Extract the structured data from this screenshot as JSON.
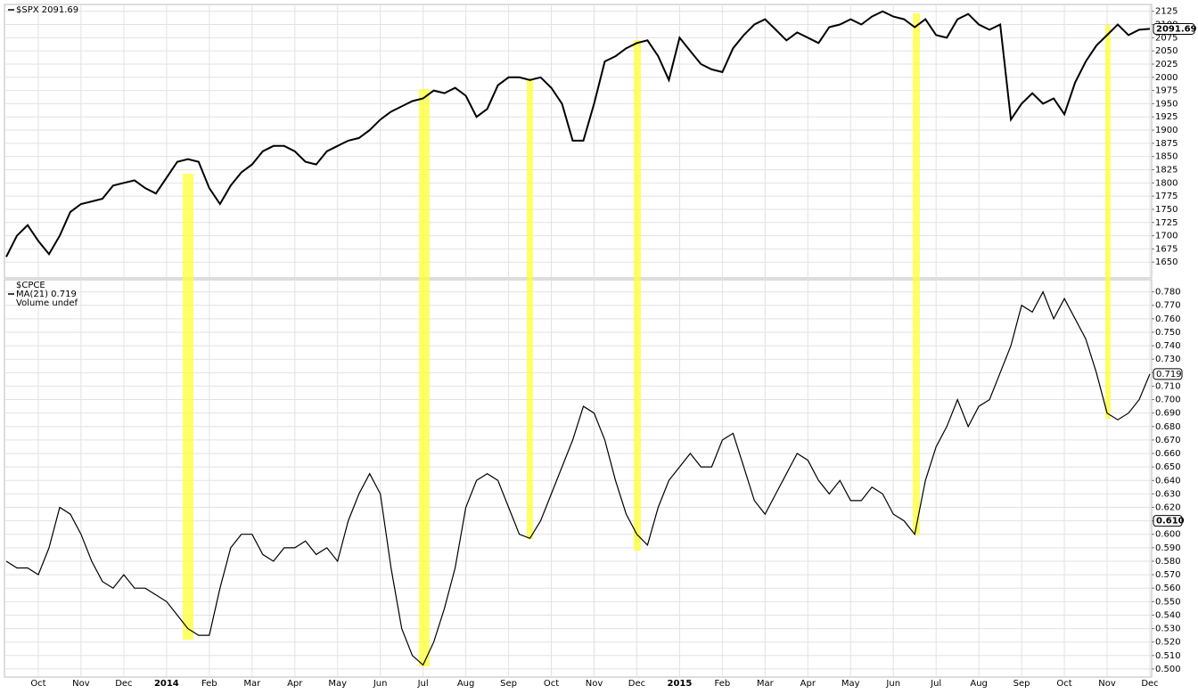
{
  "chart_data": {
    "type": "line",
    "categories": [
      null,
      null,
      null,
      "Oct",
      null,
      null,
      null,
      "Nov",
      null,
      null,
      null,
      "Dec",
      null,
      null,
      null,
      "2014",
      null,
      null,
      null,
      "Feb",
      null,
      null,
      null,
      "Mar",
      null,
      null,
      null,
      "Apr",
      null,
      null,
      null,
      "May",
      null,
      null,
      null,
      "Jun",
      null,
      null,
      null,
      "Jul",
      null,
      null,
      null,
      "Aug",
      null,
      null,
      null,
      "Sep",
      null,
      null,
      null,
      "Oct",
      null,
      null,
      null,
      "Nov",
      null,
      null,
      null,
      "Dec",
      null,
      null,
      null,
      "2015",
      null,
      null,
      null,
      "Feb",
      null,
      null,
      null,
      "Mar",
      null,
      null,
      null,
      "Apr",
      null,
      null,
      null,
      "May",
      null,
      null,
      null,
      "Jun",
      null,
      null,
      null,
      "Jul",
      null,
      null,
      null,
      "Aug",
      null,
      null,
      null,
      "Sep",
      null,
      null,
      null,
      "Oct",
      null,
      null,
      null,
      "Nov",
      null,
      null,
      null,
      "Dec"
    ],
    "grid": true,
    "panels": [
      {
        "legend": [
          "$SPX 2091.69"
        ],
        "ylim": [
          1620,
          2138
        ],
        "yticks": [
          1650,
          1675,
          1700,
          1725,
          1750,
          1775,
          1800,
          1825,
          1850,
          1875,
          1900,
          1925,
          1950,
          1975,
          2000,
          2025,
          2050,
          2075,
          2100,
          2125
        ],
        "series": [
          {
            "name": "$SPX",
            "color": "#000000",
            "values": [
              1660,
              1700,
              1720,
              1690,
              1665,
              1700,
              1745,
              1760,
              1765,
              1770,
              1795,
              1800,
              1805,
              1790,
              1780,
              1810,
              1840,
              1845,
              1840,
              1790,
              1760,
              1795,
              1820,
              1835,
              1860,
              1870,
              1870,
              1860,
              1840,
              1835,
              1860,
              1870,
              1880,
              1885,
              1900,
              1920,
              1935,
              1945,
              1955,
              1960,
              1975,
              1970,
              1980,
              1965,
              1925,
              1940,
              1985,
              2000,
              2000,
              1995,
              2000,
              1980,
              1950,
              1880,
              1880,
              1950,
              2030,
              2040,
              2055,
              2065,
              2070,
              2040,
              1995,
              2075,
              2050,
              2025,
              2015,
              2010,
              2055,
              2080,
              2100,
              2110,
              2090,
              2070,
              2085,
              2075,
              2065,
              2095,
              2100,
              2110,
              2100,
              2115,
              2125,
              2115,
              2110,
              2095,
              2110,
              2080,
              2075,
              2110,
              2120,
              2100,
              2090,
              2100,
              1920,
              1950,
              1970,
              1950,
              1960,
              1930,
              1990,
              2030,
              2060,
              2080,
              2100,
              2080,
              2090,
              2091.69
            ]
          }
        ],
        "last_values": [
          2091.69
        ]
      },
      {
        "legend": [
          "$CPCE",
          "MA(21) 0.719",
          "Volume undef"
        ],
        "ylim": [
          0.494,
          0.789
        ],
        "yticks": [
          {
            "value": 0.5,
            "label": "0.500"
          },
          {
            "value": 0.51,
            "label": "0.510"
          },
          {
            "value": 0.52,
            "label": "0.520"
          },
          {
            "value": 0.53,
            "label": "0.530"
          },
          {
            "value": 0.54,
            "label": "0.540"
          },
          {
            "value": 0.55,
            "label": "0.550"
          },
          {
            "value": 0.56,
            "label": "0.560"
          },
          {
            "value": 0.57,
            "label": "0.570"
          },
          {
            "value": 0.58,
            "label": "0.580"
          },
          {
            "value": 0.59,
            "label": "0.590"
          },
          {
            "value": 0.6,
            "label": "0.600"
          },
          {
            "value": 0.61,
            "label": "0.610"
          },
          {
            "value": 0.62,
            "label": "0.620"
          },
          {
            "value": 0.63,
            "label": "0.630"
          },
          {
            "value": 0.64,
            "label": "0.640"
          },
          {
            "value": 0.65,
            "label": "0.650"
          },
          {
            "value": 0.66,
            "label": "0.660"
          },
          {
            "value": 0.67,
            "label": "0.670"
          },
          {
            "value": 0.68,
            "label": "0.680"
          },
          {
            "value": 0.69,
            "label": "0.690"
          },
          {
            "value": 0.7,
            "label": "0.700"
          },
          {
            "value": 0.71,
            "label": "0.710"
          },
          {
            "value": 0.72,
            "label": "0.720"
          },
          {
            "value": 0.73,
            "label": "0.730"
          },
          {
            "value": 0.74,
            "label": "0.740"
          },
          {
            "value": 0.75,
            "label": "0.750"
          },
          {
            "value": 0.76,
            "label": "0.760"
          },
          {
            "value": 0.77,
            "label": "0.770"
          },
          {
            "value": 0.78,
            "label": "0.780"
          }
        ],
        "series": [
          {
            "name": "MA(21)",
            "color": "#000000",
            "values": [
              0.58,
              0.575,
              0.575,
              0.57,
              0.59,
              0.62,
              0.615,
              0.6,
              0.58,
              0.565,
              0.56,
              0.57,
              0.56,
              0.56,
              0.555,
              0.55,
              0.54,
              0.53,
              0.525,
              0.525,
              0.56,
              0.59,
              0.6,
              0.6,
              0.585,
              0.58,
              0.59,
              0.59,
              0.595,
              0.585,
              0.59,
              0.58,
              0.61,
              0.63,
              0.645,
              0.63,
              0.575,
              0.53,
              0.51,
              0.503,
              0.52,
              0.545,
              0.575,
              0.62,
              0.64,
              0.645,
              0.64,
              0.62,
              0.6,
              0.597,
              0.61,
              0.63,
              0.65,
              0.67,
              0.695,
              0.69,
              0.67,
              0.64,
              0.615,
              0.6,
              0.592,
              0.62,
              0.64,
              0.65,
              0.66,
              0.65,
              0.65,
              0.67,
              0.675,
              0.65,
              0.625,
              0.615,
              0.63,
              0.645,
              0.66,
              0.655,
              0.64,
              0.63,
              0.64,
              0.625,
              0.625,
              0.635,
              0.63,
              0.615,
              0.61,
              0.6,
              0.64,
              0.665,
              0.68,
              0.7,
              0.68,
              0.695,
              0.7,
              0.72,
              0.74,
              0.77,
              0.765,
              0.78,
              0.76,
              0.775,
              0.76,
              0.745,
              0.72,
              0.69,
              0.685,
              0.69,
              0.7,
              0.719
            ]
          }
        ],
        "last_values": [
          0.719,
          {
            "value": 0.61,
            "label": "0.610"
          }
        ]
      }
    ]
  }
}
